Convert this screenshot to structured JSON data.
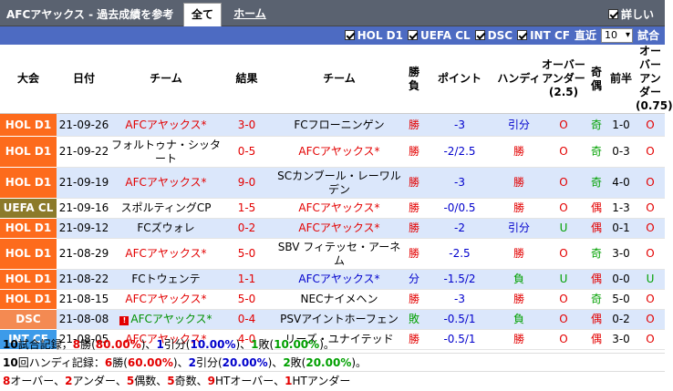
{
  "header": {
    "title": "AFCアヤックス - 過去成績を参考",
    "tab_all": "全て",
    "tab_home": "ホーム",
    "details_label": "詳しい"
  },
  "filters": {
    "items": [
      "HOL D1",
      "UEFA CL",
      "DSC",
      "INT CF"
    ],
    "recent_label": "直近",
    "recent_value": "10",
    "match_label": "試合"
  },
  "columns": {
    "league": "大会",
    "date": "日付",
    "home": "チーム",
    "score": "結果",
    "away": "チーム",
    "result": "勝負",
    "points": "ポイント",
    "handicap": "ハンディ",
    "ou25": "オーバーアンダー(2.5)",
    "oddeven": "奇偶",
    "half": "前半",
    "ou075": "オーバーアンダー(0.75)"
  },
  "rows": [
    {
      "league": "HOL D1",
      "color": "#fd6b1c",
      "date": "21-09-26",
      "home": "AFCアヤックス*",
      "home_ajax": true,
      "score": "3-0",
      "away": "FCフローニンゲン",
      "away_ajax": false,
      "result": "勝",
      "points": "-3",
      "handicap": "引分",
      "ou25": "O",
      "oddeven": "奇",
      "half": "1-0",
      "ou075": "O"
    },
    {
      "league": "HOL D1",
      "color": "#fd6b1c",
      "date": "21-09-22",
      "home": "フォルトゥナ・シッタート",
      "home_ajax": false,
      "score": "0-5",
      "away": "AFCアヤックス*",
      "away_ajax": true,
      "result": "勝",
      "points": "-2/2.5",
      "handicap": "勝",
      "ou25": "O",
      "oddeven": "奇",
      "half": "0-3",
      "ou075": "O"
    },
    {
      "league": "HOL D1",
      "color": "#fd6b1c",
      "date": "21-09-19",
      "home": "AFCアヤックス*",
      "home_ajax": true,
      "score": "9-0",
      "away": "SCカンブール・レーワルデン",
      "away_ajax": false,
      "result": "勝",
      "points": "-3",
      "handicap": "勝",
      "ou25": "O",
      "oddeven": "奇",
      "half": "4-0",
      "ou075": "O"
    },
    {
      "league": "UEFA CL",
      "color": "#8c7a2a",
      "date": "21-09-16",
      "home": "スポルティングCP",
      "home_ajax": false,
      "score": "1-5",
      "away": "AFCアヤックス*",
      "away_ajax": true,
      "result": "勝",
      "points": "-0/0.5",
      "handicap": "勝",
      "ou25": "O",
      "oddeven": "偶",
      "half": "1-3",
      "ou075": "O"
    },
    {
      "league": "HOL D1",
      "color": "#fd6b1c",
      "date": "21-09-12",
      "home": "FCズウォレ",
      "home_ajax": false,
      "score": "0-2",
      "away": "AFCアヤックス*",
      "away_ajax": true,
      "result": "勝",
      "points": "-2",
      "handicap": "引分",
      "ou25": "U",
      "oddeven": "偶",
      "half": "0-1",
      "ou075": "O"
    },
    {
      "league": "HOL D1",
      "color": "#fd6b1c",
      "date": "21-08-29",
      "home": "AFCアヤックス*",
      "home_ajax": true,
      "score": "5-0",
      "away": "SBV フィテッセ・アーネム",
      "away_ajax": false,
      "result": "勝",
      "points": "-2.5",
      "handicap": "勝",
      "ou25": "O",
      "oddeven": "奇",
      "half": "3-0",
      "ou075": "O"
    },
    {
      "league": "HOL D1",
      "color": "#fd6b1c",
      "date": "21-08-22",
      "home": "FCトウェンテ",
      "home_ajax": false,
      "score": "1-1",
      "away": "AFCアヤックス*",
      "away_ajax": true,
      "result": "分",
      "points": "-1.5/2",
      "handicap": "負",
      "ou25": "U",
      "oddeven": "偶",
      "half": "0-0",
      "ou075": "U"
    },
    {
      "league": "HOL D1",
      "color": "#fd6b1c",
      "date": "21-08-15",
      "home": "AFCアヤックス*",
      "home_ajax": true,
      "score": "5-0",
      "away": "NECナイメヘン",
      "away_ajax": false,
      "result": "勝",
      "points": "-3",
      "handicap": "勝",
      "ou25": "O",
      "oddeven": "奇",
      "half": "5-0",
      "ou075": "O"
    },
    {
      "league": "DSC",
      "color": "#f48a52",
      "date": "21-08-08",
      "home": "AFCアヤックス*",
      "home_ajax": true,
      "home_warn": "!",
      "score": "0-4",
      "away": "PSVアイントホーフェン",
      "away_ajax": false,
      "result": "敗",
      "points": "-0.5/1",
      "handicap": "負",
      "ou25": "O",
      "oddeven": "偶",
      "half": "0-2",
      "ou075": "O"
    },
    {
      "league": "INT CF",
      "color": "#3d9be9",
      "date": "21-08-05",
      "home": "AFCアヤックス*",
      "home_ajax": true,
      "score": "4-0",
      "away": "リーズ・ユナイテッド",
      "away_ajax": false,
      "result": "勝",
      "points": "-0.5/1",
      "handicap": "勝",
      "ou25": "O",
      "oddeven": "偶",
      "half": "3-0",
      "ou075": "O"
    }
  ],
  "summary": {
    "line1": [
      {
        "t": "10",
        "c": "#000",
        "b": true
      },
      {
        "t": "試合記録，",
        "c": "#000",
        "b": false
      },
      {
        "t": "8",
        "c": "#e30000",
        "b": true
      },
      {
        "t": "勝(",
        "c": "#000",
        "b": false
      },
      {
        "t": "80.00%",
        "c": "#e30000",
        "b": true
      },
      {
        "t": ")、",
        "c": "#000",
        "b": false
      },
      {
        "t": "1",
        "c": "#0000cc",
        "b": true
      },
      {
        "t": "引分(",
        "c": "#000",
        "b": false
      },
      {
        "t": "10.00%",
        "c": "#0000cc",
        "b": true
      },
      {
        "t": ")、",
        "c": "#000",
        "b": false
      },
      {
        "t": "1",
        "c": "#00a000",
        "b": true
      },
      {
        "t": "敗(",
        "c": "#000",
        "b": false
      },
      {
        "t": "10.00%",
        "c": "#00a000",
        "b": true
      },
      {
        "t": ")。",
        "c": "#000",
        "b": false
      }
    ],
    "line2": [
      {
        "t": "10",
        "c": "#000",
        "b": true
      },
      {
        "t": "回ハンディ記録：",
        "c": "#000",
        "b": false
      },
      {
        "t": "6",
        "c": "#e30000",
        "b": true
      },
      {
        "t": "勝(",
        "c": "#000",
        "b": false
      },
      {
        "t": "60.00%",
        "c": "#e30000",
        "b": true
      },
      {
        "t": ")、",
        "c": "#000",
        "b": false
      },
      {
        "t": "2",
        "c": "#0000cc",
        "b": true
      },
      {
        "t": "引分(",
        "c": "#000",
        "b": false
      },
      {
        "t": "20.00%",
        "c": "#0000cc",
        "b": true
      },
      {
        "t": ")、",
        "c": "#000",
        "b": false
      },
      {
        "t": "2",
        "c": "#00a000",
        "b": true
      },
      {
        "t": "敗(",
        "c": "#000",
        "b": false
      },
      {
        "t": "20.00%",
        "c": "#00a000",
        "b": true
      },
      {
        "t": ")。",
        "c": "#000",
        "b": false
      }
    ],
    "line3": [
      {
        "t": "8",
        "c": "#e30000",
        "b": true
      },
      {
        "t": "オーバー、",
        "c": "#000",
        "b": false
      },
      {
        "t": "2",
        "c": "#e30000",
        "b": true
      },
      {
        "t": "アンダー、",
        "c": "#000",
        "b": false
      },
      {
        "t": "5",
        "c": "#e30000",
        "b": true
      },
      {
        "t": "偶数、",
        "c": "#000",
        "b": false
      },
      {
        "t": "5",
        "c": "#e30000",
        "b": true
      },
      {
        "t": "奇数、",
        "c": "#000",
        "b": false
      },
      {
        "t": "9",
        "c": "#e30000",
        "b": true
      },
      {
        "t": "HTオーバー、",
        "c": "#000",
        "b": false
      },
      {
        "t": "1",
        "c": "#e30000",
        "b": true
      },
      {
        "t": "HTアンダー",
        "c": "#000",
        "b": false
      }
    ]
  }
}
